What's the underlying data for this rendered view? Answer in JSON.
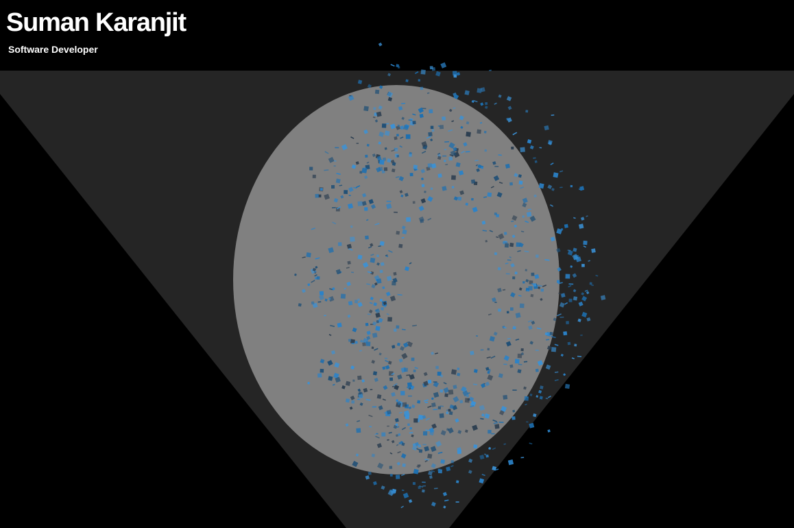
{
  "header": {
    "name": "Suman Karanjit",
    "role": "Software Developer"
  },
  "scene": {
    "background_color": "#000000",
    "band_color": "#252525",
    "triangle_color": "#2a2a2a",
    "sphere_color": "#808080",
    "particle_colors": [
      "#1d6fb0",
      "#2b82c8",
      "#3a91d6",
      "#1f4f76",
      "#2c3e50"
    ]
  }
}
